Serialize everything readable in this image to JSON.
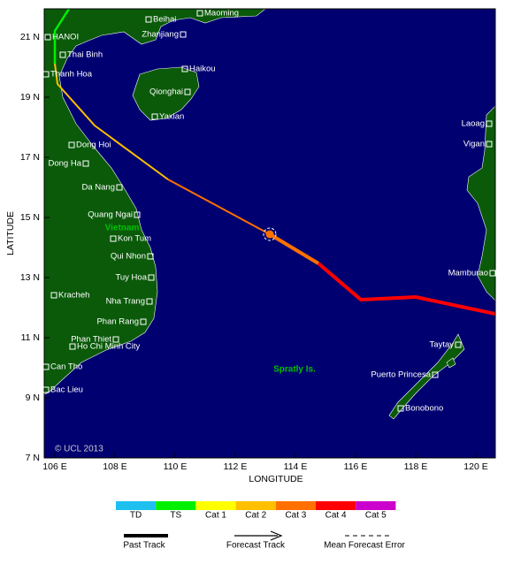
{
  "map": {
    "x_axis_label": "LONGITUDE",
    "y_axis_label": "LATITUDE",
    "x_ticks": [
      "106 E",
      "108 E",
      "110 E",
      "112 E",
      "114 E",
      "116 E",
      "118 E",
      "120 E"
    ],
    "y_ticks": [
      "21 N",
      "19 N",
      "17 N",
      "15 N",
      "13 N",
      "11 N",
      "9 N",
      "7 N"
    ],
    "credit": "© UCL 2013",
    "places": [
      "Beihai",
      "Maoming",
      "Zhanjiang",
      "HANOI",
      "Thai Binh",
      "Haikou",
      "Thanh Hoa",
      "Qionghai",
      "Yaxian",
      "Laoag",
      "Dong Hoi",
      "Vigan",
      "Dong Ha",
      "Da Nang",
      "Quang Ngai",
      "Kon Tum",
      "Qui Nhon",
      "Mamburao",
      "Tuy Hoa",
      "Kracheh",
      "Nha Trang",
      "Phan Rang",
      "Phan Thiet",
      "Ho Chi Minh City",
      "Taytay",
      "Can Tho",
      "Puerto Princesa",
      "Bac Lieu",
      "Bonobono"
    ],
    "regions": [
      "Vietnam",
      "Spratly Is."
    ]
  },
  "legend": {
    "categories": [
      "TD",
      "TS",
      "Cat 1",
      "Cat 2",
      "Cat 3",
      "Cat 4",
      "Cat 5"
    ],
    "colors": [
      "#1ec0f0",
      "#00f000",
      "#ffff00",
      "#ffc000",
      "#ff7000",
      "#ff0000",
      "#cc00cc"
    ],
    "track_keys": [
      "Past Track",
      "Forecast Track",
      "Mean Forecast Error"
    ]
  }
}
